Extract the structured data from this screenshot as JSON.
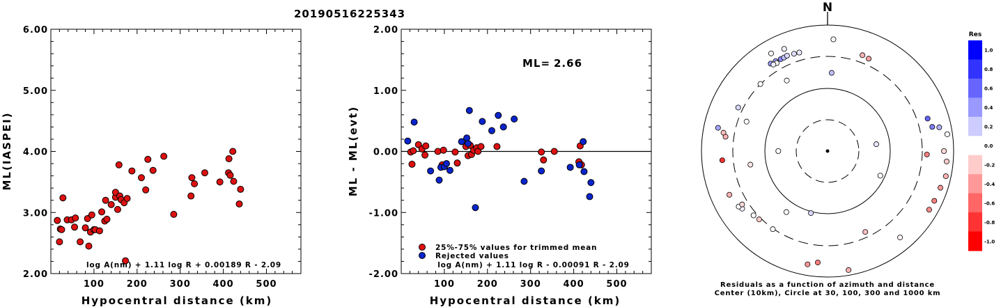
{
  "page_title": "20190516225343",
  "chart_data": [
    {
      "type": "scatter",
      "id": "ml-vs-distance",
      "xlabel": "Hypocentral distance (km)",
      "ylabel": "ML(IASPEI)",
      "xlim": [
        0,
        580
      ],
      "ylim": [
        2.0,
        6.0
      ],
      "xticks": [
        "100",
        "200",
        "300",
        "400",
        "500"
      ],
      "yticks": [
        "2.00",
        "3.00",
        "4.00",
        "5.00",
        "6.00"
      ],
      "formula": "log A(nm) + 1.11 log R + 0.00189 R - 2.09",
      "marker_color": "#dd1111",
      "points": [
        {
          "x": 15,
          "y": 2.87
        },
        {
          "x": 20,
          "y": 2.52
        },
        {
          "x": 22,
          "y": 2.73
        },
        {
          "x": 25,
          "y": 2.72
        },
        {
          "x": 28,
          "y": 3.24
        },
        {
          "x": 38,
          "y": 2.88
        },
        {
          "x": 48,
          "y": 2.88
        },
        {
          "x": 55,
          "y": 2.76
        },
        {
          "x": 57,
          "y": 2.91
        },
        {
          "x": 68,
          "y": 2.52
        },
        {
          "x": 80,
          "y": 2.75
        },
        {
          "x": 85,
          "y": 2.9
        },
        {
          "x": 88,
          "y": 2.45
        },
        {
          "x": 92,
          "y": 2.68
        },
        {
          "x": 95,
          "y": 2.96
        },
        {
          "x": 100,
          "y": 2.72
        },
        {
          "x": 103,
          "y": 2.72
        },
        {
          "x": 113,
          "y": 2.7
        },
        {
          "x": 118,
          "y": 3.01
        },
        {
          "x": 125,
          "y": 2.86
        },
        {
          "x": 127,
          "y": 3.2
        },
        {
          "x": 130,
          "y": 2.89
        },
        {
          "x": 140,
          "y": 3.13
        },
        {
          "x": 150,
          "y": 3.25
        },
        {
          "x": 150,
          "y": 3.33
        },
        {
          "x": 155,
          "y": 3.05
        },
        {
          "x": 158,
          "y": 3.78
        },
        {
          "x": 160,
          "y": 3.27
        },
        {
          "x": 163,
          "y": 3.21
        },
        {
          "x": 170,
          "y": 3.16
        },
        {
          "x": 173,
          "y": 2.21
        },
        {
          "x": 177,
          "y": 3.23
        },
        {
          "x": 188,
          "y": 3.68
        },
        {
          "x": 210,
          "y": 3.57
        },
        {
          "x": 220,
          "y": 3.37
        },
        {
          "x": 225,
          "y": 3.87
        },
        {
          "x": 237,
          "y": 3.69
        },
        {
          "x": 262,
          "y": 3.92
        },
        {
          "x": 285,
          "y": 2.97
        },
        {
          "x": 325,
          "y": 3.27
        },
        {
          "x": 327,
          "y": 3.57
        },
        {
          "x": 333,
          "y": 3.47
        },
        {
          "x": 357,
          "y": 3.65
        },
        {
          "x": 392,
          "y": 3.5
        },
        {
          "x": 412,
          "y": 3.65
        },
        {
          "x": 413,
          "y": 3.88
        },
        {
          "x": 416,
          "y": 3.61
        },
        {
          "x": 422,
          "y": 4.0
        },
        {
          "x": 424,
          "y": 3.51
        },
        {
          "x": 437,
          "y": 3.14
        },
        {
          "x": 440,
          "y": 3.38
        }
      ]
    },
    {
      "type": "scatter",
      "id": "residual-vs-distance",
      "xlabel": "Hypocentral distance (km)",
      "ylabel": "ML - ML(evt)",
      "xlim": [
        0,
        580
      ],
      "ylim": [
        -2.0,
        2.0
      ],
      "xticks": [
        "100",
        "200",
        "300",
        "400",
        "500"
      ],
      "yticks": [
        "-2.00",
        "-1.00",
        "0.00",
        "1.00",
        "2.00"
      ],
      "ml_label": "ML=",
      "ml_value": "2.66",
      "formula": "log A(nm) + 1.11 log R - 0.00091 R - 2.09",
      "legend": [
        {
          "label": "25%-75% values for trimmed mean",
          "color": "#dd1111"
        },
        {
          "label": "Rejected values",
          "color": "#0a24cc"
        }
      ],
      "series": [
        {
          "group": "trimmed",
          "color": "#dd1111",
          "points": [
            {
              "x": 22,
              "y": -0.01
            },
            {
              "x": 25,
              "y": -0.21
            },
            {
              "x": 28,
              "y": 0.01
            },
            {
              "x": 40,
              "y": 0.11
            },
            {
              "x": 48,
              "y": 0.04
            },
            {
              "x": 55,
              "y": -0.06
            },
            {
              "x": 57,
              "y": 0.09
            },
            {
              "x": 85,
              "y": 0.0
            },
            {
              "x": 95,
              "y": -0.22
            },
            {
              "x": 98,
              "y": 0.02
            },
            {
              "x": 125,
              "y": -0.01
            },
            {
              "x": 130,
              "y": -0.19
            },
            {
              "x": 150,
              "y": 0.08
            },
            {
              "x": 155,
              "y": -0.07
            },
            {
              "x": 160,
              "y": 0.1
            },
            {
              "x": 163,
              "y": -0.05
            },
            {
              "x": 168,
              "y": 0.02
            },
            {
              "x": 175,
              "y": 0.06
            },
            {
              "x": 178,
              "y": 0.0
            },
            {
              "x": 185,
              "y": 0.08
            },
            {
              "x": 222,
              "y": 0.08
            },
            {
              "x": 325,
              "y": -0.01
            },
            {
              "x": 330,
              "y": -0.14
            },
            {
              "x": 355,
              "y": 0.0
            },
            {
              "x": 412,
              "y": -0.17
            },
            {
              "x": 415,
              "y": 0.09
            },
            {
              "x": 418,
              "y": -0.22
            }
          ]
        },
        {
          "group": "rejected",
          "color": "#0a24cc",
          "points": [
            {
              "x": 15,
              "y": 0.17
            },
            {
              "x": 30,
              "y": 0.48
            },
            {
              "x": 68,
              "y": -0.32
            },
            {
              "x": 88,
              "y": -0.47
            },
            {
              "x": 92,
              "y": -0.26
            },
            {
              "x": 100,
              "y": -0.25
            },
            {
              "x": 105,
              "y": -0.2
            },
            {
              "x": 113,
              "y": -0.31
            },
            {
              "x": 140,
              "y": 0.16
            },
            {
              "x": 152,
              "y": 0.22
            },
            {
              "x": 155,
              "y": 0.13
            },
            {
              "x": 158,
              "y": 0.67
            },
            {
              "x": 172,
              "y": -0.92
            },
            {
              "x": 188,
              "y": 0.49
            },
            {
              "x": 210,
              "y": 0.34
            },
            {
              "x": 225,
              "y": 0.59
            },
            {
              "x": 237,
              "y": 0.4
            },
            {
              "x": 262,
              "y": 0.53
            },
            {
              "x": 285,
              "y": -0.49
            },
            {
              "x": 325,
              "y": -0.32
            },
            {
              "x": 392,
              "y": -0.26
            },
            {
              "x": 413,
              "y": -0.22
            },
            {
              "x": 422,
              "y": 0.16
            },
            {
              "x": 424,
              "y": -0.33
            },
            {
              "x": 437,
              "y": -0.74
            },
            {
              "x": 440,
              "y": -0.51
            }
          ]
        }
      ]
    },
    {
      "type": "scatter",
      "id": "azimuth-distance-residuals",
      "north_label": "N",
      "caption_line1": "Residuals as a function of azimuth and distance",
      "caption_line2": "Center (10km), Circle at 30, 100, 300 and 1000 km",
      "colorbar": {
        "title": "Res",
        "ticks": [
          "1.0",
          "0.8",
          "0.6",
          "0.4",
          "0.2",
          "0.0",
          "-0.2",
          "-0.4",
          "-0.6",
          "-0.8",
          "-1.0"
        ],
        "max_color": "#0000ff",
        "zero_color": "#ffffff",
        "min_color": "#ff0000"
      },
      "stations": [
        {
          "azimuth_deg": 3,
          "distance_km": 700,
          "residual": 0.0
        },
        {
          "azimuth_deg": 337,
          "distance_km": 680,
          "residual": 0.05
        },
        {
          "azimuth_deg": 330,
          "distance_km": 720,
          "residual": 0.02
        },
        {
          "azimuth_deg": 327,
          "distance_km": 530,
          "residual": 0.4
        },
        {
          "azimuth_deg": 330,
          "distance_km": 520,
          "residual": 0.35
        },
        {
          "azimuth_deg": 333,
          "distance_km": 505,
          "residual": 0.45
        },
        {
          "azimuth_deg": 335,
          "distance_km": 505,
          "residual": 0.25
        },
        {
          "azimuth_deg": 337,
          "distance_km": 515,
          "residual": 0.15
        },
        {
          "azimuth_deg": 341,
          "distance_km": 500,
          "residual": 0.12
        },
        {
          "azimuth_deg": 344,
          "distance_km": 490,
          "residual": 0.08
        },
        {
          "azimuth_deg": 330,
          "distance_km": 470,
          "residual": 0.0
        },
        {
          "azimuth_deg": 328,
          "distance_km": 480,
          "residual": 0.05
        },
        {
          "azimuth_deg": 20,
          "distance_km": 480,
          "residual": -0.3
        },
        {
          "azimuth_deg": 24,
          "distance_km": 460,
          "residual": -0.35
        },
        {
          "azimuth_deg": 315,
          "distance_km": 320,
          "residual": 0.0
        },
        {
          "azimuth_deg": 330,
          "distance_km": 220,
          "residual": 0.0
        },
        {
          "azimuth_deg": 296,
          "distance_km": 420,
          "residual": 0.15
        },
        {
          "azimuth_deg": 290,
          "distance_km": 250,
          "residual": 0.0
        },
        {
          "azimuth_deg": 282,
          "distance_km": 700,
          "residual": 0.35
        },
        {
          "azimuth_deg": 280,
          "distance_km": 560,
          "residual": -0.25
        },
        {
          "azimuth_deg": 278,
          "distance_km": 500,
          "residual": -0.3
        },
        {
          "azimuth_deg": 265,
          "distance_km": 560,
          "residual": -0.8
        },
        {
          "azimuth_deg": 260,
          "distance_km": 200,
          "residual": -0.1
        },
        {
          "azimuth_deg": 270,
          "distance_km": 70,
          "residual": 0.0
        },
        {
          "azimuth_deg": 3,
          "distance_km": 200,
          "residual": 0.25
        },
        {
          "azimuth_deg": 92,
          "distance_km": 420,
          "residual": -0.5
        },
        {
          "azimuth_deg": 72,
          "distance_km": 550,
          "residual": 0.6
        },
        {
          "azimuth_deg": 77,
          "distance_km": 600,
          "residual": 0.5
        },
        {
          "azimuth_deg": 78,
          "distance_km": 750,
          "residual": 0.3
        },
        {
          "azimuth_deg": 82,
          "distance_km": 900,
          "residual": 0.0
        },
        {
          "azimuth_deg": 90,
          "distance_km": 800,
          "residual": -0.15
        },
        {
          "azimuth_deg": 95,
          "distance_km": 870,
          "residual": -0.2
        },
        {
          "azimuth_deg": 102,
          "distance_km": 900,
          "residual": -0.3
        },
        {
          "azimuth_deg": 108,
          "distance_km": 850,
          "residual": -0.4
        },
        {
          "azimuth_deg": 115,
          "distance_km": 830,
          "residual": -0.5
        },
        {
          "azimuth_deg": 120,
          "distance_km": 820,
          "residual": -0.45
        },
        {
          "azimuth_deg": 82,
          "distance_km": 70,
          "residual": 0.1
        },
        {
          "azimuth_deg": 115,
          "distance_km": 90,
          "residual": 0.0
        },
        {
          "azimuth_deg": 140,
          "distance_km": 720,
          "residual": -0.05
        },
        {
          "azimuth_deg": 155,
          "distance_km": 270,
          "residual": -0.25
        },
        {
          "azimuth_deg": 185,
          "distance_km": 700,
          "residual": -0.5
        },
        {
          "azimuth_deg": 190,
          "distance_km": 770,
          "residual": -0.4
        },
        {
          "azimuth_deg": 170,
          "distance_km": 900,
          "residual": -0.3
        },
        {
          "azimuth_deg": 195,
          "distance_km": 110,
          "residual": 0.15
        },
        {
          "azimuth_deg": 214,
          "distance_km": 170,
          "residual": 0.0
        },
        {
          "azimuth_deg": 225,
          "distance_km": 360,
          "residual": -0.2
        },
        {
          "azimuth_deg": 229,
          "distance_km": 390,
          "residual": 0.0
        },
        {
          "azimuth_deg": 236,
          "distance_km": 500,
          "residual": 0.05
        },
        {
          "azimuth_deg": 238,
          "distance_km": 540,
          "residual": 0.0
        },
        {
          "azimuth_deg": 238,
          "distance_km": 450,
          "residual": -0.15
        },
        {
          "azimuth_deg": 215,
          "distance_km": 330,
          "residual": 0.0
        },
        {
          "azimuth_deg": 246,
          "distance_km": 600,
          "residual": -0.3
        }
      ]
    }
  ]
}
